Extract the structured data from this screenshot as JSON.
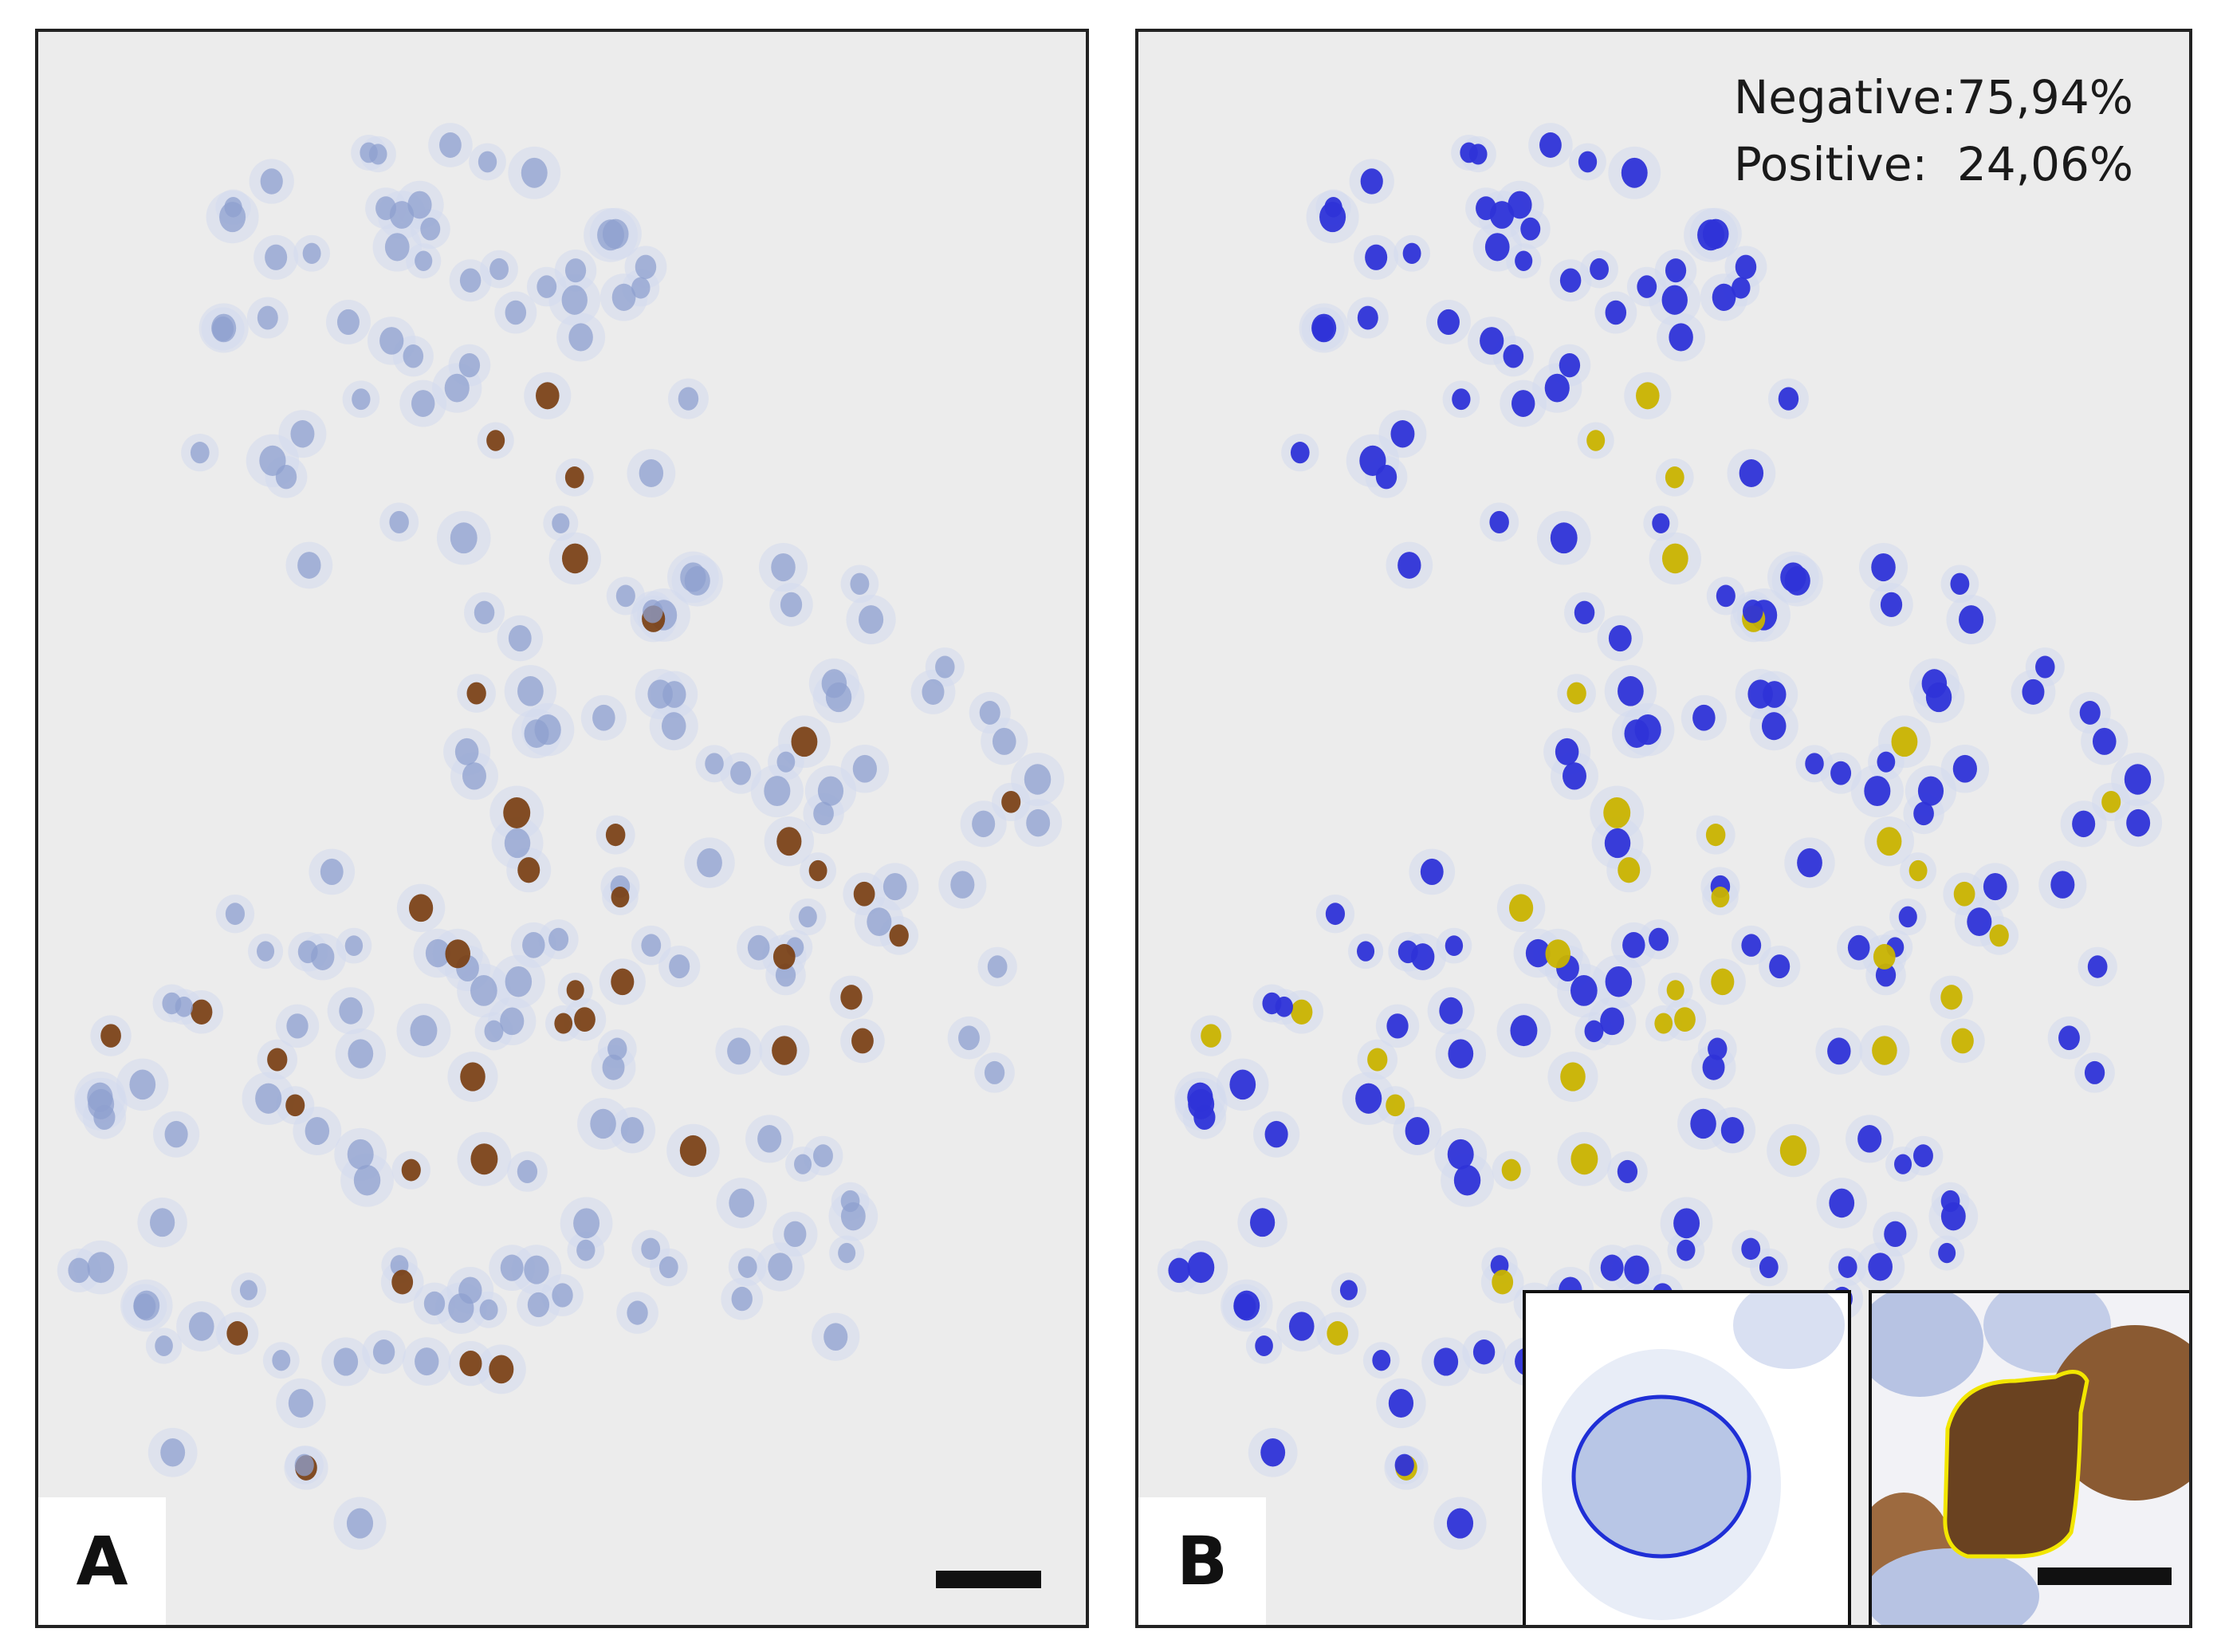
{
  "figure": {
    "panel_a": {
      "label": "A"
    },
    "panel_b": {
      "label": "B",
      "stats": {
        "negative_label": "Negative:",
        "negative_value": "75,94%",
        "positive_label": "Positive:",
        "positive_value": "24,06%"
      },
      "insets": [
        {
          "kind": "negative-cell",
          "outline_color": "#1f2fd6"
        },
        {
          "kind": "positive-cell",
          "outline_color": "#f2e600"
        }
      ]
    },
    "colors": {
      "background": "#ececec",
      "hematoxylin": "#8fa0cf",
      "dab_brown": "#7a3f12",
      "negative_mask": "#2e33d8",
      "positive_mask": "#c9b300"
    }
  }
}
